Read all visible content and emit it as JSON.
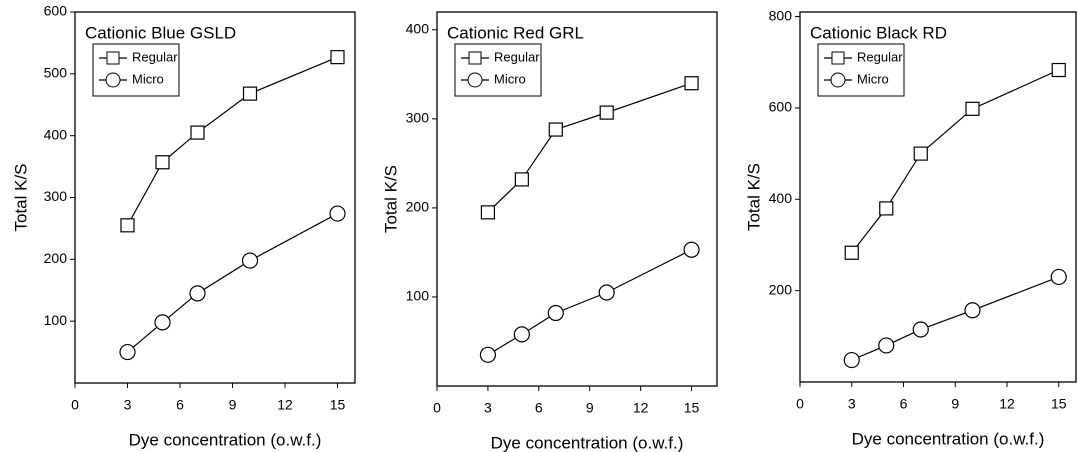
{
  "chart_data": [
    {
      "type": "line",
      "title": "Cationic Blue GSLD",
      "xlabel": "Dye concentration (o.w.f.)",
      "ylabel": "Total K/S",
      "x": [
        3,
        5,
        7,
        10,
        15
      ],
      "xlim": [
        0,
        16
      ],
      "xticks": [
        0,
        3,
        6,
        9,
        12,
        15
      ],
      "ylim": [
        0,
        600
      ],
      "yticks": [
        100,
        200,
        300,
        400,
        500,
        600
      ],
      "series": [
        {
          "name": "Regular",
          "color": "#000000",
          "marker": "square",
          "values": [
            255,
            357,
            405,
            468,
            527
          ]
        },
        {
          "name": "Micro",
          "color": "#000000",
          "marker": "circle",
          "values": [
            50,
            98,
            145,
            198,
            274
          ]
        }
      ]
    },
    {
      "type": "line",
      "title": "Cationic Red GRL",
      "xlabel": "Dye concentration (o.w.f.)",
      "ylabel": "Total K/S",
      "x": [
        3,
        5,
        7,
        10,
        15
      ],
      "xlim": [
        0,
        16.5
      ],
      "xticks": [
        0,
        3,
        6,
        9,
        12,
        15
      ],
      "ylim": [
        0,
        420
      ],
      "yticks": [
        100,
        200,
        300,
        400
      ],
      "series": [
        {
          "name": "Regular",
          "color": "#000000",
          "marker": "square",
          "values": [
            195,
            232,
            288,
            307,
            340
          ]
        },
        {
          "name": "Micro",
          "color": "#000000",
          "marker": "circle",
          "values": [
            35,
            58,
            82,
            105,
            153
          ]
        }
      ]
    },
    {
      "type": "line",
      "title": "Cationic Black RD",
      "xlabel": "Dye concentration (o.w.f.)",
      "ylabel": "Total K/S",
      "x": [
        3,
        5,
        7,
        10,
        15
      ],
      "xlim": [
        0,
        16
      ],
      "xticks": [
        0,
        3,
        6,
        9,
        12,
        15
      ],
      "ylim": [
        0,
        810
      ],
      "yticks": [
        200,
        400,
        600,
        800
      ],
      "series": [
        {
          "name": "Regular",
          "color": "#000000",
          "marker": "square",
          "values": [
            283,
            380,
            500,
            598,
            683
          ]
        },
        {
          "name": "Micro",
          "color": "#000000",
          "marker": "circle",
          "values": [
            48,
            80,
            115,
            157,
            230
          ]
        }
      ]
    }
  ]
}
